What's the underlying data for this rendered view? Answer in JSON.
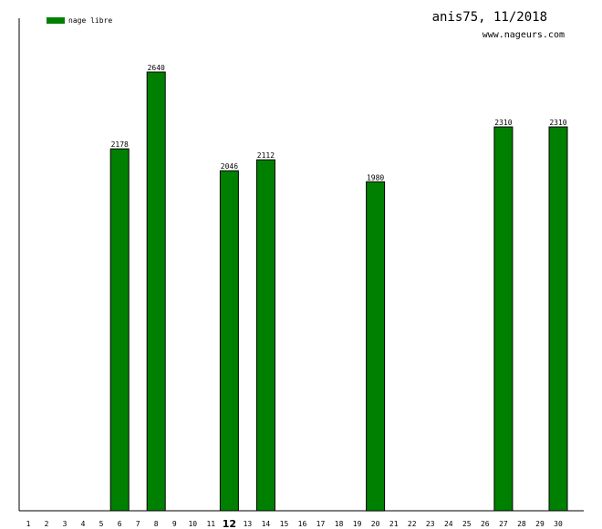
{
  "header": {
    "title": "anis75, 11/2018",
    "site": "www.nageurs.com"
  },
  "legend": {
    "label": "nage libre",
    "color": "#008000"
  },
  "colors": {
    "bar_fill": "#008000",
    "bar_stroke": "#000000",
    "axis": "#000000",
    "background": "#ffffff"
  },
  "chart_data": {
    "type": "bar",
    "title": "anis75, 11/2018",
    "xlabel": "",
    "ylabel": "",
    "categories": [
      "1",
      "2",
      "3",
      "4",
      "5",
      "6",
      "7",
      "8",
      "9",
      "10",
      "11",
      "12",
      "13",
      "14",
      "15",
      "16",
      "17",
      "18",
      "19",
      "20",
      "21",
      "22",
      "23",
      "24",
      "25",
      "26",
      "27",
      "28",
      "29",
      "30"
    ],
    "highlighted_category": "12",
    "series": [
      {
        "name": "nage libre",
        "values": [
          0,
          0,
          0,
          0,
          0,
          2178,
          0,
          2640,
          0,
          0,
          0,
          2046,
          0,
          2112,
          0,
          0,
          0,
          0,
          0,
          1980,
          0,
          0,
          0,
          0,
          0,
          0,
          2310,
          0,
          0,
          2310
        ]
      }
    ],
    "ylim": [
      0,
      2640
    ],
    "grid": false,
    "legend_position": "top-left"
  }
}
